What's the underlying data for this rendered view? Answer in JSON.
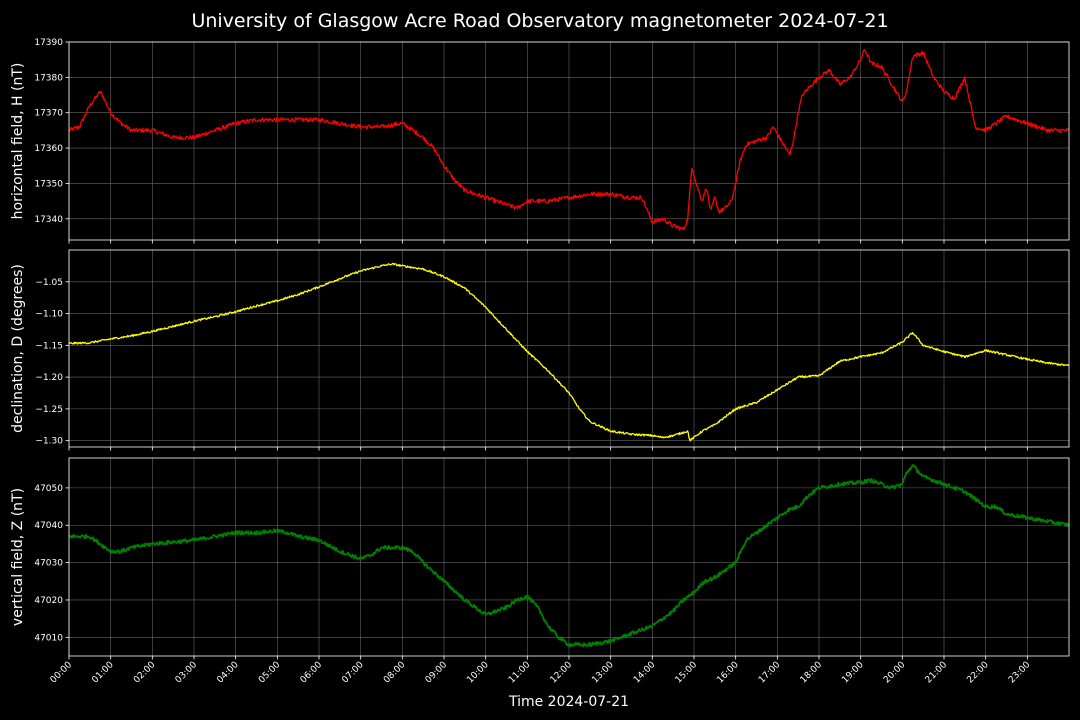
{
  "title": "University of Glasgow Acre Road Observatory magnetometer 2024-07-21",
  "colors": {
    "background": "#000000",
    "grid": "#666666",
    "axes": "#ffffff"
  },
  "chart_data": {
    "type": "line",
    "xlabel": "Time 2024-07-21",
    "x_tick_labels": [
      "00:00",
      "01:00",
      "02:00",
      "03:00",
      "04:00",
      "05:00",
      "06:00",
      "07:00",
      "08:00",
      "09:00",
      "10:00",
      "11:00",
      "12:00",
      "13:00",
      "14:00",
      "15:00",
      "16:00",
      "17:00",
      "18:00",
      "19:00",
      "20:00",
      "21:00",
      "22:00",
      "23:00"
    ],
    "xlim_hours": [
      0,
      24
    ],
    "grid": true,
    "panels": [
      {
        "name": "H",
        "ylabel": "horizontal field, H (nT)",
        "color": "#ff0000",
        "ylim": [
          17334,
          17390
        ],
        "yticks": [
          17340,
          17350,
          17360,
          17370,
          17380,
          17390
        ],
        "ytick_labels": [
          "17340",
          "17350",
          "17360",
          "17370",
          "17380",
          "17390"
        ],
        "noise": 0.6,
        "x": [
          0,
          0.25,
          0.5,
          0.75,
          0.8,
          1.0,
          1.25,
          1.5,
          2.0,
          2.5,
          3.0,
          3.5,
          4.0,
          4.5,
          5.0,
          5.5,
          6.0,
          6.5,
          7.0,
          7.5,
          8.0,
          8.25,
          8.5,
          8.75,
          9.0,
          9.25,
          9.5,
          10.0,
          10.5,
          10.75,
          11.0,
          11.5,
          12.0,
          12.5,
          13.0,
          13.5,
          13.75,
          14.0,
          14.25,
          14.5,
          14.75,
          14.85,
          14.95,
          15.05,
          15.2,
          15.3,
          15.4,
          15.5,
          15.6,
          15.75,
          15.9,
          16.0,
          16.1,
          16.25,
          16.5,
          16.75,
          16.9,
          17.0,
          17.1,
          17.2,
          17.3,
          17.4,
          17.5,
          17.6,
          17.75,
          18.0,
          18.25,
          18.5,
          18.75,
          19.0,
          19.1,
          19.25,
          19.5,
          19.75,
          20.0,
          20.1,
          20.25,
          20.5,
          20.75,
          21.0,
          21.25,
          21.5,
          21.75,
          22.0,
          22.25,
          22.5,
          23.0,
          23.5,
          24.0
        ],
        "y": [
          17365,
          17366,
          17372,
          17376,
          17375,
          17370,
          17367,
          17365,
          17365,
          17363,
          17363,
          17365,
          17367,
          17368,
          17368,
          17368,
          17368,
          17367,
          17366,
          17366,
          17367,
          17365,
          17363,
          17360,
          17355,
          17351,
          17348,
          17346,
          17344,
          17343,
          17345,
          17345,
          17346,
          17347,
          17347,
          17346,
          17346,
          17339,
          17340,
          17338,
          17337,
          17340,
          17355,
          17350,
          17345,
          17349,
          17342,
          17346,
          17342,
          17343,
          17345,
          17350,
          17356,
          17361,
          17362,
          17363,
          17366,
          17364,
          17362,
          17360,
          17358,
          17363,
          17370,
          17375,
          17377,
          17380,
          17382,
          17378,
          17380,
          17385,
          17388,
          17384,
          17383,
          17378,
          17373,
          17376,
          17386,
          17387,
          17380,
          17376,
          17374,
          17380,
          17366,
          17365,
          17367,
          17369,
          17367,
          17365,
          17365
        ]
      },
      {
        "name": "D",
        "ylabel": "declination, D (degrees)",
        "color": "#ffff00",
        "ylim": [
          -1.31,
          -1.0
        ],
        "yticks": [
          -1.05,
          -1.1,
          -1.15,
          -1.2,
          -1.25,
          -1.3
        ],
        "ytick_labels": [
          "−1.05",
          "−1.10",
          "−1.15",
          "−1.20",
          "−1.25",
          "−1.30"
        ],
        "noise": 0.0015,
        "x": [
          0,
          0.5,
          1.0,
          1.5,
          2.0,
          2.5,
          3.0,
          3.5,
          4.0,
          4.5,
          5.0,
          5.5,
          6.0,
          6.5,
          7.0,
          7.5,
          7.75,
          8.0,
          8.5,
          9.0,
          9.5,
          10.0,
          10.5,
          11.0,
          11.5,
          12.0,
          12.25,
          12.5,
          13.0,
          13.5,
          14.0,
          14.25,
          14.5,
          14.75,
          14.85,
          14.9,
          15.0,
          15.2,
          15.5,
          16.0,
          16.5,
          17.0,
          17.5,
          18.0,
          18.5,
          19.0,
          19.5,
          20.0,
          20.25,
          20.5,
          20.75,
          21.0,
          21.5,
          22.0,
          22.5,
          23.0,
          23.5,
          24.0
        ],
        "y": [
          -1.147,
          -1.146,
          -1.14,
          -1.135,
          -1.128,
          -1.12,
          -1.112,
          -1.105,
          -1.097,
          -1.088,
          -1.08,
          -1.07,
          -1.058,
          -1.045,
          -1.033,
          -1.025,
          -1.022,
          -1.025,
          -1.03,
          -1.042,
          -1.06,
          -1.09,
          -1.125,
          -1.16,
          -1.19,
          -1.225,
          -1.25,
          -1.27,
          -1.285,
          -1.29,
          -1.292,
          -1.295,
          -1.292,
          -1.287,
          -1.285,
          -1.3,
          -1.295,
          -1.285,
          -1.275,
          -1.25,
          -1.24,
          -1.22,
          -1.2,
          -1.198,
          -1.175,
          -1.168,
          -1.162,
          -1.145,
          -1.13,
          -1.15,
          -1.155,
          -1.16,
          -1.168,
          -1.158,
          -1.165,
          -1.172,
          -1.178,
          -1.182
        ]
      },
      {
        "name": "Z",
        "ylabel": "vertical field, Z (nT)",
        "color": "#008000",
        "ylim": [
          47005,
          47058
        ],
        "yticks": [
          47010,
          47020,
          47030,
          47040,
          47050
        ],
        "ytick_labels": [
          "47010",
          "47020",
          "47030",
          "47040",
          "47050"
        ],
        "noise": 0.5,
        "x": [
          0,
          0.25,
          0.5,
          0.75,
          1.0,
          1.25,
          1.5,
          2.0,
          2.5,
          3.0,
          3.5,
          4.0,
          4.5,
          5.0,
          5.25,
          5.5,
          6.0,
          6.5,
          7.0,
          7.25,
          7.5,
          7.75,
          8.0,
          8.25,
          8.5,
          9.0,
          9.5,
          10.0,
          10.25,
          10.5,
          10.75,
          11.0,
          11.25,
          11.5,
          11.75,
          12.0,
          12.5,
          13.0,
          13.5,
          14.0,
          14.5,
          14.75,
          15.0,
          15.25,
          15.5,
          15.75,
          16.0,
          16.25,
          16.5,
          16.75,
          17.0,
          17.25,
          17.5,
          17.75,
          18.0,
          18.5,
          19.0,
          19.25,
          19.5,
          19.75,
          20.0,
          20.1,
          20.25,
          20.5,
          20.75,
          21.0,
          21.25,
          21.5,
          21.75,
          22.0,
          22.25,
          22.5,
          23.0,
          23.5,
          24.0
        ],
        "y": [
          47037,
          47037,
          47037,
          47035,
          47033,
          47033,
          47034,
          47035,
          47035.5,
          47036,
          47037,
          47038,
          47038,
          47038.5,
          47038,
          47037,
          47036,
          47033,
          47031,
          47032,
          47034,
          47034,
          47034,
          47033,
          47030,
          47025,
          47020,
          47016,
          47017,
          47018,
          47020,
          47021,
          47018,
          47013,
          47010,
          47008,
          47008,
          47009,
          47011,
          47013,
          47017,
          47020,
          47022,
          47025,
          47026,
          47028,
          47030,
          47036,
          47038,
          47040,
          47042,
          47044,
          47045,
          47048,
          47050,
          47051,
          47051.5,
          47052,
          47051,
          47050,
          47051,
          47054,
          47056,
          47053,
          47052,
          47051,
          47050,
          47049,
          47047,
          47045,
          47045,
          47043,
          47042,
          47041,
          47040
        ]
      }
    ]
  }
}
